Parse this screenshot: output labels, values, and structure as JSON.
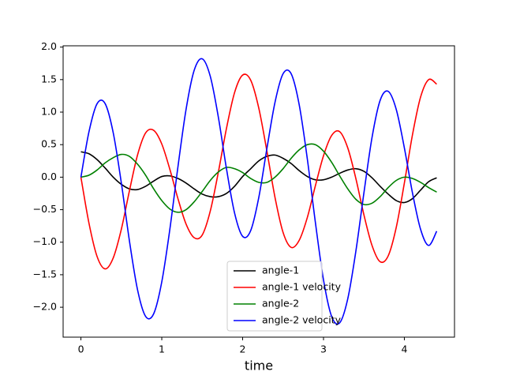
{
  "chart_data": {
    "type": "line",
    "xlabel": "time",
    "x": [
      0,
      0.1,
      0.2,
      0.3,
      0.4,
      0.5,
      0.6,
      0.7,
      0.8,
      0.9,
      1.0,
      1.1,
      1.2,
      1.3,
      1.4,
      1.5,
      1.6,
      1.7,
      1.8,
      1.9,
      2.0,
      2.1,
      2.2,
      2.3,
      2.4,
      2.5,
      2.6,
      2.7,
      2.8,
      2.9,
      3.0,
      3.1,
      3.2,
      3.3,
      3.4,
      3.5,
      3.6,
      3.7,
      3.8,
      3.9,
      4.0,
      4.1,
      4.2,
      4.3,
      4.4
    ],
    "series": [
      {
        "name": "angle-1",
        "color": "#000000",
        "values": [
          0.39,
          0.36,
          0.27,
          0.14,
          0.0,
          -0.11,
          -0.18,
          -0.19,
          -0.14,
          -0.06,
          0.01,
          0.02,
          -0.02,
          -0.09,
          -0.18,
          -0.26,
          -0.3,
          -0.3,
          -0.25,
          -0.14,
          0.01,
          0.13,
          0.25,
          0.32,
          0.34,
          0.29,
          0.21,
          0.1,
          0.01,
          -0.04,
          -0.04,
          0.0,
          0.06,
          0.11,
          0.13,
          0.09,
          -0.01,
          -0.14,
          -0.26,
          -0.36,
          -0.39,
          -0.33,
          -0.2,
          -0.07,
          -0.01
        ]
      },
      {
        "name": "angle-1 velocity",
        "color": "#ff0000",
        "values": [
          0,
          -0.71,
          -1.22,
          -1.41,
          -1.24,
          -0.8,
          -0.21,
          0.34,
          0.68,
          0.72,
          0.51,
          0.12,
          -0.33,
          -0.72,
          -0.93,
          -0.89,
          -0.52,
          0.08,
          0.75,
          1.3,
          1.57,
          1.49,
          1.06,
          0.4,
          -0.31,
          -0.85,
          -1.08,
          -0.97,
          -0.62,
          -0.13,
          0.33,
          0.64,
          0.7,
          0.45,
          -0.02,
          -0.58,
          -1.05,
          -1.3,
          -1.21,
          -0.77,
          -0.09,
          0.65,
          1.23,
          1.5,
          1.43
        ]
      },
      {
        "name": "angle-2",
        "color": "#008000",
        "values": [
          0,
          0.03,
          0.11,
          0.22,
          0.3,
          0.35,
          0.32,
          0.2,
          0.03,
          -0.18,
          -0.36,
          -0.49,
          -0.54,
          -0.5,
          -0.38,
          -0.22,
          -0.05,
          0.08,
          0.15,
          0.13,
          0.07,
          -0.02,
          -0.08,
          -0.08,
          0.0,
          0.13,
          0.29,
          0.42,
          0.5,
          0.5,
          0.4,
          0.23,
          0.02,
          -0.18,
          -0.34,
          -0.42,
          -0.4,
          -0.3,
          -0.16,
          -0.05,
          0.0,
          -0.02,
          -0.08,
          -0.16,
          -0.23
        ]
      },
      {
        "name": "angle-2 velocity",
        "color": "#0000ff",
        "values": [
          0,
          0.7,
          1.13,
          1.13,
          0.68,
          -0.09,
          -0.98,
          -1.73,
          -2.14,
          -2.1,
          -1.61,
          -0.8,
          0.16,
          1.04,
          1.64,
          1.82,
          1.55,
          0.92,
          0.13,
          -0.55,
          -0.91,
          -0.82,
          -0.31,
          0.44,
          1.15,
          1.59,
          1.59,
          1.11,
          0.28,
          -0.7,
          -1.58,
          -2.14,
          -2.24,
          -1.87,
          -1.14,
          -0.24,
          0.61,
          1.18,
          1.32,
          1.04,
          0.45,
          -0.24,
          -0.8,
          -1.05,
          -0.83
        ]
      }
    ],
    "xlim": [
      -0.22,
      4.62
    ],
    "ylim": [
      -2.46,
      2.02
    ],
    "xticks": [
      0,
      1,
      2,
      3,
      4
    ],
    "yticks": [
      {
        "value": -2,
        "label": "−2.0"
      },
      {
        "value": -1.5,
        "label": "−1.5"
      },
      {
        "value": -1,
        "label": "−1.0"
      },
      {
        "value": -0.5,
        "label": "−0.5"
      },
      {
        "value": 0,
        "label": "0.0"
      },
      {
        "value": 0.5,
        "label": "0.5"
      },
      {
        "value": 1,
        "label": "1.0"
      },
      {
        "value": 1.5,
        "label": "1.5"
      },
      {
        "value": 2,
        "label": "2.0"
      }
    ],
    "grid": false,
    "legend": "lower center"
  }
}
